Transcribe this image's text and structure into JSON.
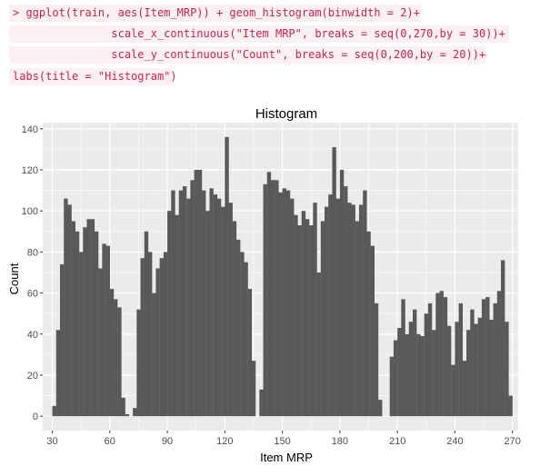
{
  "code": {
    "lines": [
      "> ggplot(train, aes(Item_MRP)) + geom_histogram(binwidth = 2)+",
      "               scale_x_continuous(\"Item MRP\", breaks = seq(0,270,by = 30))+",
      "               scale_y_continuous(\"Count\", breaks = seq(0,200,by = 20))+",
      "labs(title = \"Histogram\")"
    ]
  },
  "colors": {
    "panel_bg": "#ebebeb",
    "grid_major": "#ffffff",
    "bar_fill": "#595959",
    "code_bg": "#fbf1f3",
    "code_text": "#c7254e"
  },
  "chart_data": {
    "type": "bar",
    "title": "Histogram",
    "xlabel": "Item MRP",
    "ylabel": "Count",
    "binwidth": 2,
    "xlim": [
      25,
      273
    ],
    "ylim": [
      -7,
      143
    ],
    "x_ticks": [
      30,
      60,
      90,
      120,
      150,
      180,
      210,
      240,
      270
    ],
    "y_ticks": [
      0,
      20,
      40,
      60,
      80,
      100,
      120,
      140
    ],
    "grid": true,
    "bins": [
      {
        "x": 31,
        "value": 5
      },
      {
        "x": 33,
        "value": 42
      },
      {
        "x": 35,
        "value": 74
      },
      {
        "x": 37,
        "value": 106
      },
      {
        "x": 39,
        "value": 103
      },
      {
        "x": 41,
        "value": 95
      },
      {
        "x": 43,
        "value": 90
      },
      {
        "x": 45,
        "value": 80
      },
      {
        "x": 47,
        "value": 92
      },
      {
        "x": 49,
        "value": 96
      },
      {
        "x": 51,
        "value": 96
      },
      {
        "x": 53,
        "value": 90
      },
      {
        "x": 55,
        "value": 72
      },
      {
        "x": 57,
        "value": 84
      },
      {
        "x": 59,
        "value": 83
      },
      {
        "x": 61,
        "value": 62
      },
      {
        "x": 63,
        "value": 57
      },
      {
        "x": 65,
        "value": 53
      },
      {
        "x": 67,
        "value": 9
      },
      {
        "x": 69,
        "value": 1
      },
      {
        "x": 73,
        "value": 4
      },
      {
        "x": 75,
        "value": 52
      },
      {
        "x": 77,
        "value": 77
      },
      {
        "x": 79,
        "value": 90
      },
      {
        "x": 81,
        "value": 80
      },
      {
        "x": 83,
        "value": 60
      },
      {
        "x": 85,
        "value": 72
      },
      {
        "x": 87,
        "value": 77
      },
      {
        "x": 89,
        "value": 80
      },
      {
        "x": 91,
        "value": 100
      },
      {
        "x": 93,
        "value": 110
      },
      {
        "x": 95,
        "value": 98
      },
      {
        "x": 97,
        "value": 110
      },
      {
        "x": 99,
        "value": 112
      },
      {
        "x": 101,
        "value": 106
      },
      {
        "x": 103,
        "value": 115
      },
      {
        "x": 105,
        "value": 120
      },
      {
        "x": 107,
        "value": 120
      },
      {
        "x": 109,
        "value": 110
      },
      {
        "x": 111,
        "value": 100
      },
      {
        "x": 113,
        "value": 111
      },
      {
        "x": 115,
        "value": 108
      },
      {
        "x": 117,
        "value": 106
      },
      {
        "x": 119,
        "value": 102
      },
      {
        "x": 121,
        "value": 136
      },
      {
        "x": 123,
        "value": 104
      },
      {
        "x": 125,
        "value": 95
      },
      {
        "x": 127,
        "value": 86
      },
      {
        "x": 129,
        "value": 80
      },
      {
        "x": 131,
        "value": 75
      },
      {
        "x": 133,
        "value": 62
      },
      {
        "x": 135,
        "value": 27
      },
      {
        "x": 139,
        "value": 13
      },
      {
        "x": 141,
        "value": 113
      },
      {
        "x": 143,
        "value": 119
      },
      {
        "x": 145,
        "value": 115
      },
      {
        "x": 147,
        "value": 115
      },
      {
        "x": 149,
        "value": 109
      },
      {
        "x": 151,
        "value": 111
      },
      {
        "x": 153,
        "value": 110
      },
      {
        "x": 155,
        "value": 106
      },
      {
        "x": 157,
        "value": 98
      },
      {
        "x": 159,
        "value": 93
      },
      {
        "x": 161,
        "value": 100
      },
      {
        "x": 163,
        "value": 96
      },
      {
        "x": 165,
        "value": 93
      },
      {
        "x": 167,
        "value": 104
      },
      {
        "x": 169,
        "value": 70
      },
      {
        "x": 171,
        "value": 95
      },
      {
        "x": 173,
        "value": 102
      },
      {
        "x": 175,
        "value": 108
      },
      {
        "x": 177,
        "value": 131
      },
      {
        "x": 179,
        "value": 106
      },
      {
        "x": 181,
        "value": 120
      },
      {
        "x": 183,
        "value": 112
      },
      {
        "x": 185,
        "value": 104
      },
      {
        "x": 187,
        "value": 103
      },
      {
        "x": 189,
        "value": 95
      },
      {
        "x": 191,
        "value": 103
      },
      {
        "x": 193,
        "value": 110
      },
      {
        "x": 195,
        "value": 90
      },
      {
        "x": 197,
        "value": 83
      },
      {
        "x": 199,
        "value": 55
      },
      {
        "x": 201,
        "value": 8
      },
      {
        "x": 207,
        "value": 29
      },
      {
        "x": 209,
        "value": 37
      },
      {
        "x": 211,
        "value": 43
      },
      {
        "x": 213,
        "value": 57
      },
      {
        "x": 215,
        "value": 40
      },
      {
        "x": 217,
        "value": 46
      },
      {
        "x": 219,
        "value": 52
      },
      {
        "x": 221,
        "value": 40
      },
      {
        "x": 223,
        "value": 39
      },
      {
        "x": 225,
        "value": 50
      },
      {
        "x": 227,
        "value": 55
      },
      {
        "x": 229,
        "value": 42
      },
      {
        "x": 231,
        "value": 60
      },
      {
        "x": 233,
        "value": 61
      },
      {
        "x": 235,
        "value": 58
      },
      {
        "x": 237,
        "value": 44
      },
      {
        "x": 239,
        "value": 25
      },
      {
        "x": 241,
        "value": 46
      },
      {
        "x": 243,
        "value": 55
      },
      {
        "x": 245,
        "value": 27
      },
      {
        "x": 247,
        "value": 42
      },
      {
        "x": 249,
        "value": 52
      },
      {
        "x": 251,
        "value": 45
      },
      {
        "x": 253,
        "value": 48
      },
      {
        "x": 255,
        "value": 57
      },
      {
        "x": 257,
        "value": 58
      },
      {
        "x": 259,
        "value": 47
      },
      {
        "x": 261,
        "value": 55
      },
      {
        "x": 263,
        "value": 61
      },
      {
        "x": 265,
        "value": 76
      },
      {
        "x": 267,
        "value": 46
      },
      {
        "x": 269,
        "value": 10
      }
    ]
  }
}
